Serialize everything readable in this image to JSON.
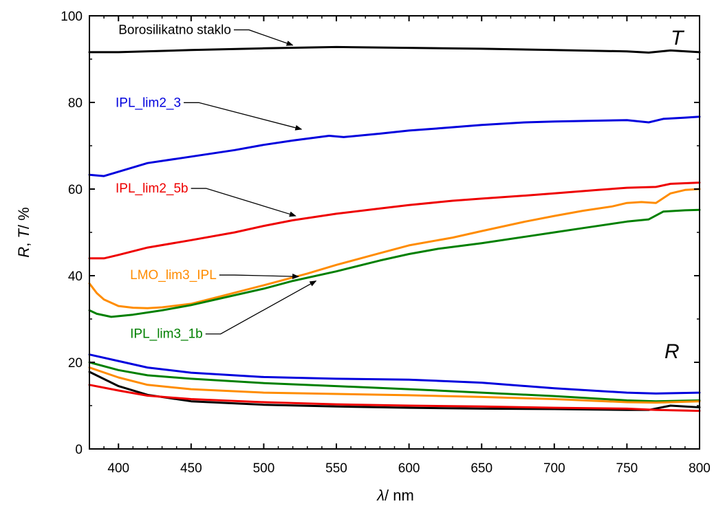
{
  "chart_data": {
    "type": "line",
    "xlabel": {
      "symbol": "λ",
      "rest": "/ nm"
    },
    "ylabel": {
      "r": "R",
      "comma": ", ",
      "t": "T",
      "rest": "/ %"
    },
    "xlim": [
      380,
      800
    ],
    "ylim": [
      0,
      100
    ],
    "xticks": [
      400,
      450,
      500,
      550,
      600,
      650,
      700,
      750,
      800
    ],
    "yticks": [
      0,
      20,
      40,
      60,
      80,
      100
    ],
    "grid": false,
    "corner_labels": {
      "transmittance": "T",
      "reflectance": "R"
    },
    "series": [
      {
        "name": "Borosilikatno staklo",
        "kind": "T",
        "color": "#000000",
        "x": [
          380,
          400,
          450,
          500,
          550,
          600,
          650,
          700,
          750,
          765,
          780,
          800
        ],
        "y": [
          91.6,
          91.6,
          92.1,
          92.5,
          92.8,
          92.6,
          92.4,
          92.1,
          91.8,
          91.5,
          92.0,
          91.6
        ]
      },
      {
        "name": "IPL_lim2_3",
        "kind": "T",
        "color": "#0000dd",
        "x": [
          380,
          390,
          400,
          420,
          450,
          480,
          500,
          520,
          545,
          555,
          580,
          600,
          620,
          650,
          680,
          700,
          730,
          750,
          765,
          775,
          790,
          800
        ],
        "y": [
          63.3,
          63.0,
          64.0,
          66.0,
          67.5,
          69.0,
          70.2,
          71.2,
          72.3,
          72.0,
          72.8,
          73.5,
          74.0,
          74.8,
          75.4,
          75.6,
          75.8,
          75.9,
          75.4,
          76.2,
          76.5,
          76.7
        ]
      },
      {
        "name": "IPL_lim2_5b",
        "kind": "T",
        "color": "#ee0000",
        "x": [
          380,
          390,
          400,
          420,
          450,
          480,
          500,
          520,
          550,
          580,
          600,
          630,
          650,
          680,
          700,
          730,
          750,
          770,
          780,
          800
        ],
        "y": [
          44.0,
          44.0,
          44.8,
          46.5,
          48.2,
          50.0,
          51.5,
          52.8,
          54.3,
          55.5,
          56.3,
          57.3,
          57.8,
          58.5,
          59.0,
          59.8,
          60.3,
          60.5,
          61.2,
          61.5
        ]
      },
      {
        "name": "LMO_lim3_IPL",
        "kind": "T",
        "color": "#ff8c00",
        "x": [
          380,
          385,
          390,
          400,
          410,
          420,
          430,
          450,
          470,
          500,
          530,
          550,
          580,
          600,
          630,
          650,
          680,
          700,
          720,
          740,
          750,
          760,
          770,
          780,
          790,
          800
        ],
        "y": [
          38.2,
          36.0,
          34.5,
          33.0,
          32.6,
          32.5,
          32.7,
          33.5,
          35.2,
          37.8,
          40.5,
          42.5,
          45.2,
          47.0,
          48.8,
          50.3,
          52.5,
          53.8,
          55.0,
          56.0,
          56.8,
          57.0,
          56.8,
          59.0,
          59.8,
          60.0
        ]
      },
      {
        "name": "IPL_lim3_1b",
        "kind": "T",
        "color": "#008000",
        "x": [
          380,
          385,
          395,
          410,
          430,
          450,
          480,
          500,
          520,
          550,
          580,
          600,
          620,
          650,
          680,
          700,
          720,
          750,
          765,
          775,
          790,
          800
        ],
        "y": [
          32.0,
          31.2,
          30.5,
          31.0,
          32.0,
          33.2,
          35.5,
          37.0,
          38.8,
          41.0,
          43.5,
          45.0,
          46.2,
          47.5,
          49.0,
          50.0,
          51.0,
          52.5,
          53.0,
          54.8,
          55.1,
          55.2
        ]
      },
      {
        "name": "IPL_lim2_3",
        "kind": "R",
        "color": "#0000dd",
        "x": [
          380,
          400,
          420,
          450,
          500,
          550,
          600,
          650,
          700,
          750,
          770,
          800
        ],
        "y": [
          21.8,
          20.3,
          18.8,
          17.6,
          16.6,
          16.2,
          16.0,
          15.3,
          14.0,
          13.0,
          12.8,
          13.0
        ]
      },
      {
        "name": "IPL_lim3_1b",
        "kind": "R",
        "color": "#008000",
        "x": [
          380,
          400,
          420,
          450,
          500,
          550,
          600,
          650,
          700,
          750,
          770,
          800
        ],
        "y": [
          20.0,
          18.2,
          17.0,
          16.2,
          15.2,
          14.5,
          13.8,
          13.0,
          12.2,
          11.2,
          11.0,
          11.2
        ]
      },
      {
        "name": "LMO_lim3_IPL",
        "kind": "R",
        "color": "#ff8c00",
        "x": [
          380,
          400,
          420,
          450,
          500,
          550,
          600,
          650,
          700,
          750,
          770,
          800
        ],
        "y": [
          18.8,
          16.5,
          14.8,
          13.8,
          13.0,
          12.7,
          12.4,
          12.0,
          11.5,
          10.8,
          10.7,
          11.0
        ]
      },
      {
        "name": "Borosilikatno staklo",
        "kind": "R",
        "color": "#000000",
        "x": [
          380,
          400,
          420,
          450,
          500,
          550,
          600,
          650,
          700,
          750,
          765,
          780,
          800
        ],
        "y": [
          17.8,
          14.5,
          12.5,
          11.0,
          10.2,
          9.8,
          9.5,
          9.3,
          9.2,
          9.0,
          9.0,
          10.0,
          9.6
        ]
      },
      {
        "name": "IPL_lim2_5b",
        "kind": "R",
        "color": "#ee0000",
        "x": [
          380,
          400,
          420,
          450,
          500,
          550,
          600,
          650,
          700,
          750,
          770,
          800
        ],
        "y": [
          14.8,
          13.5,
          12.3,
          11.5,
          10.8,
          10.3,
          10.0,
          9.8,
          9.5,
          9.3,
          9.0,
          8.8
        ]
      }
    ],
    "annotations": [
      {
        "text": "Borosilikatno staklo",
        "color": "#000000",
        "label_at": [
          400,
          95.8
        ],
        "arrow_to": [
          520,
          93.2
        ]
      },
      {
        "text": "IPL_lim2_3",
        "color": "#0000dd",
        "label_at": [
          398,
          79.0
        ],
        "arrow_to": [
          526,
          73.8
        ]
      },
      {
        "text": "IPL_lim2_5b",
        "color": "#ee0000",
        "label_at": [
          398,
          59.2
        ],
        "arrow_to": [
          522,
          53.8
        ]
      },
      {
        "text": "LMO_lim3_IPL",
        "color": "#ff8c00",
        "label_at": [
          408,
          39.2
        ],
        "arrow_to": [
          524,
          39.8
        ]
      },
      {
        "text": "IPL_lim3_1b",
        "color": "#008000",
        "label_at": [
          408,
          25.6
        ],
        "arrow_to": [
          536,
          38.8
        ]
      }
    ]
  }
}
